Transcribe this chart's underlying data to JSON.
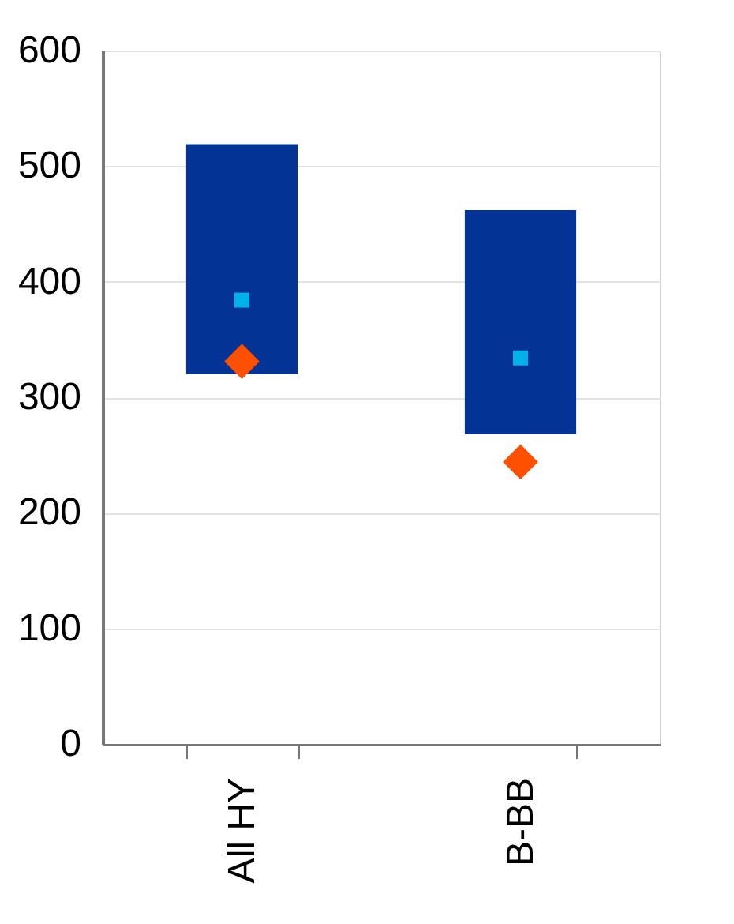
{
  "chart_data": {
    "type": "bar",
    "categories": [
      "All HY",
      "B-BB"
    ],
    "series": [
      {
        "color": "#023395",
        "base": [
          320,
          268
        ],
        "values": [
          199,
          194
        ]
      },
      {
        "type": "scatter",
        "color": "#00b0e8",
        "marker": "square",
        "values": [
          384,
          334
        ]
      },
      {
        "type": "scatter",
        "color": "#ff5000",
        "marker": "diamond",
        "values": [
          331,
          244
        ]
      }
    ],
    "ylim": [
      0,
      600
    ],
    "yticks": [
      0,
      100,
      200,
      300,
      400,
      500,
      600
    ],
    "grid": "y"
  }
}
